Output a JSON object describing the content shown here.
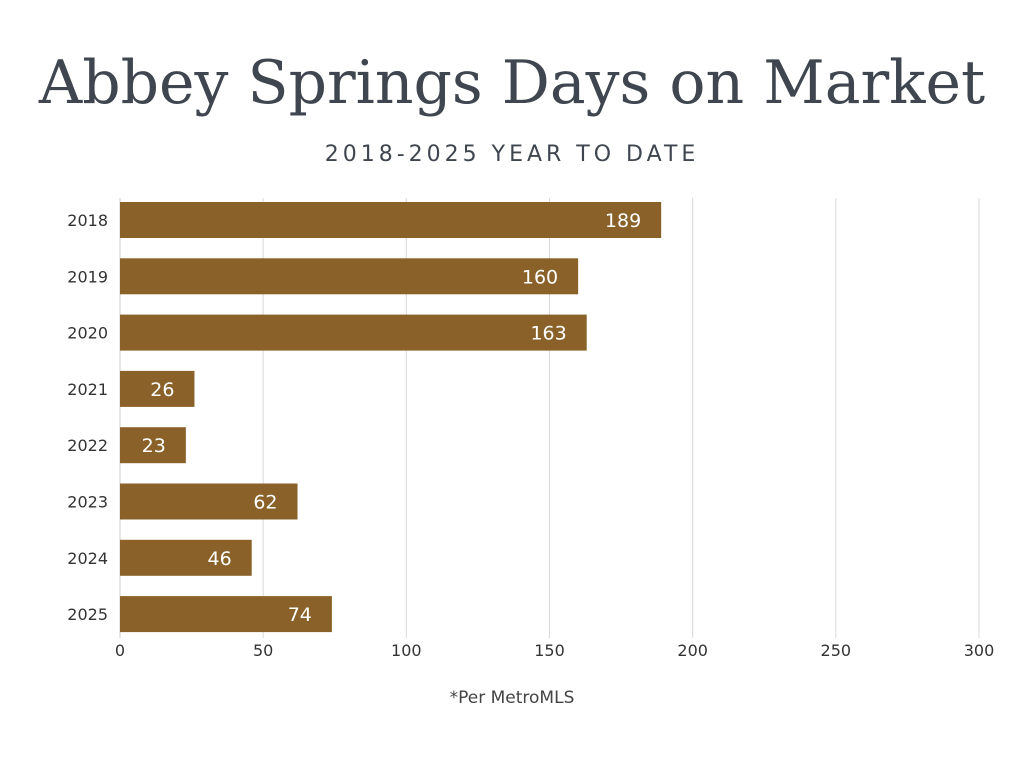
{
  "chart_data": {
    "type": "bar",
    "orientation": "horizontal",
    "title": "Abbey Springs Days on Market",
    "subtitle": "2018-2025 YEAR TO DATE",
    "categories": [
      "2018",
      "2019",
      "2020",
      "2021",
      "2022",
      "2023",
      "2024",
      "2025"
    ],
    "values": [
      189,
      160,
      163,
      26,
      23,
      62,
      46,
      74
    ],
    "xlim": [
      0,
      300
    ],
    "xticks": [
      0,
      50,
      100,
      150,
      200,
      250,
      300
    ],
    "grid": true,
    "bar_color": "#8a6229",
    "label_color": "#ffffff",
    "footnote": "*Per MetroMLS"
  }
}
